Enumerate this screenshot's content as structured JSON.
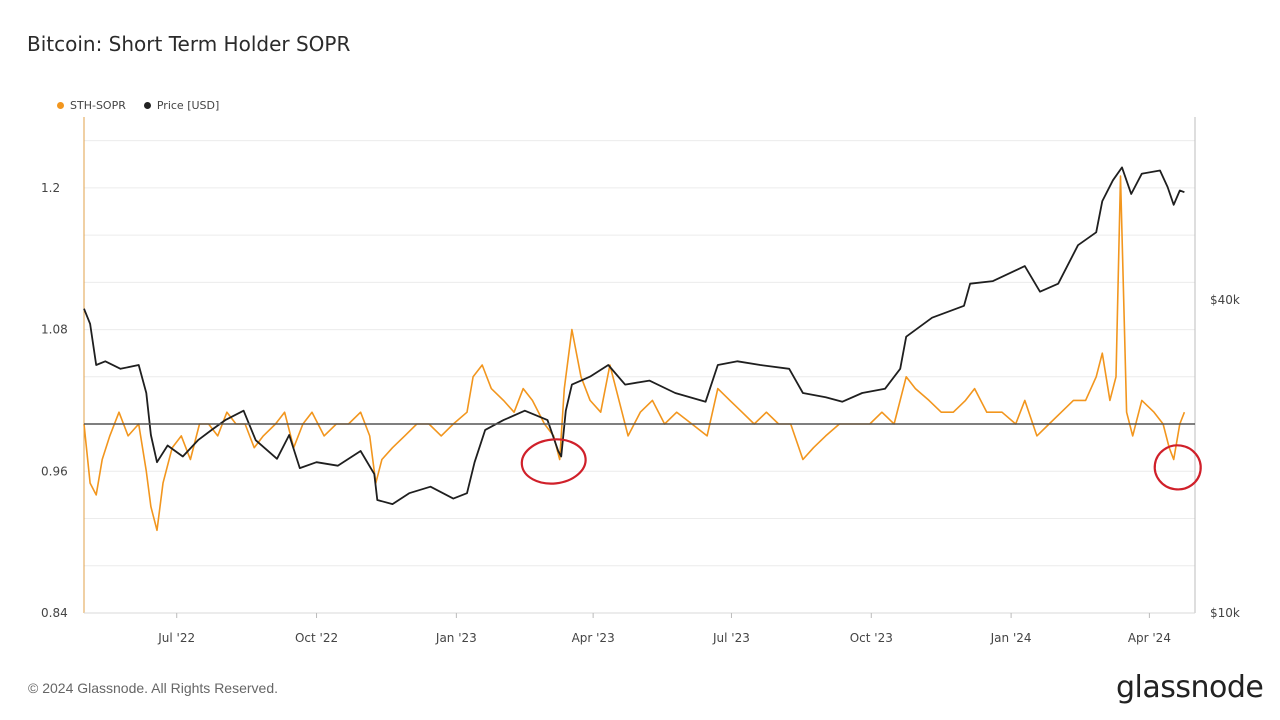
{
  "page": {
    "title": "Bitcoin: Short Term Holder SOPR",
    "footer": "© 2024 Glassnode. All Rights Reserved.",
    "logo": "glassnode"
  },
  "legend": [
    {
      "label": "STH-SOPR",
      "color": "#f2961e"
    },
    {
      "label": "Price [USD]",
      "color": "#222222"
    }
  ],
  "colors": {
    "sopr": "#f2961e",
    "price": "#1f1f1f",
    "baseline": "#555555",
    "annotation": "#d0202a",
    "grid": "#ececec"
  },
  "chart_data": {
    "type": "line",
    "title": "Bitcoin: Short Term Holder SOPR",
    "x_range": [
      "2022-05-01",
      "2024-05-01"
    ],
    "x_ticks": [
      {
        "date": "2022-07-01",
        "label": "Jul '22"
      },
      {
        "date": "2022-10-01",
        "label": "Oct '22"
      },
      {
        "date": "2023-01-01",
        "label": "Jan '23"
      },
      {
        "date": "2023-04-01",
        "label": "Apr '23"
      },
      {
        "date": "2023-07-01",
        "label": "Jul '23"
      },
      {
        "date": "2023-10-01",
        "label": "Oct '23"
      },
      {
        "date": "2024-01-01",
        "label": "Jan '24"
      },
      {
        "date": "2024-04-01",
        "label": "Apr '24"
      }
    ],
    "y_left": {
      "range": [
        0.84,
        1.26
      ],
      "ticks": [
        0.84,
        0.96,
        1.08,
        1.2
      ],
      "tick_labels": [
        "0.84",
        "0.96",
        "1.08",
        "1.2"
      ]
    },
    "y_right": {
      "scale": "log",
      "range": [
        10000,
        90000
      ],
      "ticks": [
        10000,
        40000
      ],
      "tick_labels": [
        "$10k",
        "$40k"
      ]
    },
    "baseline": 1.0,
    "grid": true,
    "legend_position": "top-left",
    "series": [
      {
        "name": "STH-SOPR",
        "axis": "left",
        "points": [
          [
            "2022-05-01",
            1.0
          ],
          [
            "2022-05-05",
            0.95
          ],
          [
            "2022-05-09",
            0.94
          ],
          [
            "2022-05-13",
            0.97
          ],
          [
            "2022-05-18",
            0.99
          ],
          [
            "2022-05-24",
            1.01
          ],
          [
            "2022-05-30",
            0.99
          ],
          [
            "2022-06-06",
            1.0
          ],
          [
            "2022-06-11",
            0.96
          ],
          [
            "2022-06-14",
            0.93
          ],
          [
            "2022-06-18",
            0.91
          ],
          [
            "2022-06-22",
            0.95
          ],
          [
            "2022-06-28",
            0.98
          ],
          [
            "2022-07-04",
            0.99
          ],
          [
            "2022-07-10",
            0.97
          ],
          [
            "2022-07-16",
            1.0
          ],
          [
            "2022-07-22",
            1.0
          ],
          [
            "2022-07-28",
            0.99
          ],
          [
            "2022-08-03",
            1.01
          ],
          [
            "2022-08-09",
            1.0
          ],
          [
            "2022-08-15",
            1.0
          ],
          [
            "2022-08-21",
            0.98
          ],
          [
            "2022-08-27",
            0.99
          ],
          [
            "2022-09-04",
            1.0
          ],
          [
            "2022-09-10",
            1.01
          ],
          [
            "2022-09-16",
            0.98
          ],
          [
            "2022-09-22",
            1.0
          ],
          [
            "2022-09-28",
            1.01
          ],
          [
            "2022-10-06",
            0.99
          ],
          [
            "2022-10-14",
            1.0
          ],
          [
            "2022-10-22",
            1.0
          ],
          [
            "2022-10-30",
            1.01
          ],
          [
            "2022-11-05",
            0.99
          ],
          [
            "2022-11-09",
            0.95
          ],
          [
            "2022-11-13",
            0.97
          ],
          [
            "2022-11-20",
            0.98
          ],
          [
            "2022-11-28",
            0.99
          ],
          [
            "2022-12-06",
            1.0
          ],
          [
            "2022-12-14",
            1.0
          ],
          [
            "2022-12-22",
            0.99
          ],
          [
            "2022-12-30",
            1.0
          ],
          [
            "2023-01-08",
            1.01
          ],
          [
            "2023-01-12",
            1.04
          ],
          [
            "2023-01-18",
            1.05
          ],
          [
            "2023-01-24",
            1.03
          ],
          [
            "2023-02-01",
            1.02
          ],
          [
            "2023-02-08",
            1.01
          ],
          [
            "2023-02-14",
            1.03
          ],
          [
            "2023-02-20",
            1.02
          ],
          [
            "2023-02-28",
            1.0
          ],
          [
            "2023-03-06",
            0.99
          ],
          [
            "2023-03-10",
            0.97
          ],
          [
            "2023-03-13",
            1.03
          ],
          [
            "2023-03-18",
            1.08
          ],
          [
            "2023-03-24",
            1.04
          ],
          [
            "2023-03-30",
            1.02
          ],
          [
            "2023-04-06",
            1.01
          ],
          [
            "2023-04-12",
            1.05
          ],
          [
            "2023-04-18",
            1.02
          ],
          [
            "2023-04-24",
            0.99
          ],
          [
            "2023-05-02",
            1.01
          ],
          [
            "2023-05-10",
            1.02
          ],
          [
            "2023-05-18",
            1.0
          ],
          [
            "2023-05-26",
            1.01
          ],
          [
            "2023-06-05",
            1.0
          ],
          [
            "2023-06-15",
            0.99
          ],
          [
            "2023-06-22",
            1.03
          ],
          [
            "2023-06-30",
            1.02
          ],
          [
            "2023-07-08",
            1.01
          ],
          [
            "2023-07-16",
            1.0
          ],
          [
            "2023-07-24",
            1.01
          ],
          [
            "2023-08-01",
            1.0
          ],
          [
            "2023-08-09",
            1.0
          ],
          [
            "2023-08-17",
            0.97
          ],
          [
            "2023-08-24",
            0.98
          ],
          [
            "2023-09-01",
            0.99
          ],
          [
            "2023-09-10",
            1.0
          ],
          [
            "2023-09-20",
            1.0
          ],
          [
            "2023-09-30",
            1.0
          ],
          [
            "2023-10-08",
            1.01
          ],
          [
            "2023-10-16",
            1.0
          ],
          [
            "2023-10-24",
            1.04
          ],
          [
            "2023-10-30",
            1.03
          ],
          [
            "2023-11-08",
            1.02
          ],
          [
            "2023-11-16",
            1.01
          ],
          [
            "2023-11-24",
            1.01
          ],
          [
            "2023-12-02",
            1.02
          ],
          [
            "2023-12-08",
            1.03
          ],
          [
            "2023-12-16",
            1.01
          ],
          [
            "2023-12-26",
            1.01
          ],
          [
            "2024-01-04",
            1.0
          ],
          [
            "2024-01-10",
            1.02
          ],
          [
            "2024-01-18",
            0.99
          ],
          [
            "2024-01-26",
            1.0
          ],
          [
            "2024-02-03",
            1.01
          ],
          [
            "2024-02-11",
            1.02
          ],
          [
            "2024-02-19",
            1.02
          ],
          [
            "2024-02-26",
            1.04
          ],
          [
            "2024-03-01",
            1.06
          ],
          [
            "2024-03-06",
            1.02
          ],
          [
            "2024-03-10",
            1.04
          ],
          [
            "2024-03-13",
            1.21
          ],
          [
            "2024-03-17",
            1.01
          ],
          [
            "2024-03-21",
            0.99
          ],
          [
            "2024-03-27",
            1.02
          ],
          [
            "2024-04-04",
            1.01
          ],
          [
            "2024-04-10",
            1.0
          ],
          [
            "2024-04-14",
            0.98
          ],
          [
            "2024-04-17",
            0.97
          ],
          [
            "2024-04-21",
            1.0
          ],
          [
            "2024-04-24",
            1.01
          ]
        ]
      },
      {
        "name": "Price [USD]",
        "axis": "right",
        "points": [
          [
            "2022-05-01",
            38500
          ],
          [
            "2022-05-05",
            36000
          ],
          [
            "2022-05-09",
            30000
          ],
          [
            "2022-05-15",
            30500
          ],
          [
            "2022-05-25",
            29500
          ],
          [
            "2022-06-06",
            30000
          ],
          [
            "2022-06-11",
            26500
          ],
          [
            "2022-06-14",
            22000
          ],
          [
            "2022-06-18",
            19500
          ],
          [
            "2022-06-25",
            21000
          ],
          [
            "2022-07-05",
            20000
          ],
          [
            "2022-07-15",
            21500
          ],
          [
            "2022-07-24",
            22500
          ],
          [
            "2022-08-02",
            23500
          ],
          [
            "2022-08-14",
            24500
          ],
          [
            "2022-08-22",
            21500
          ],
          [
            "2022-09-05",
            19800
          ],
          [
            "2022-09-13",
            22000
          ],
          [
            "2022-09-20",
            19000
          ],
          [
            "2022-10-01",
            19500
          ],
          [
            "2022-10-15",
            19200
          ],
          [
            "2022-10-30",
            20500
          ],
          [
            "2022-11-08",
            18500
          ],
          [
            "2022-11-10",
            16500
          ],
          [
            "2022-11-20",
            16200
          ],
          [
            "2022-12-01",
            17000
          ],
          [
            "2022-12-15",
            17500
          ],
          [
            "2022-12-30",
            16600
          ],
          [
            "2023-01-08",
            17000
          ],
          [
            "2023-01-13",
            19500
          ],
          [
            "2023-01-20",
            22500
          ],
          [
            "2023-02-01",
            23500
          ],
          [
            "2023-02-15",
            24500
          ],
          [
            "2023-03-02",
            23500
          ],
          [
            "2023-03-09",
            20500
          ],
          [
            "2023-03-11",
            20000
          ],
          [
            "2023-03-14",
            24500
          ],
          [
            "2023-03-18",
            27500
          ],
          [
            "2023-03-30",
            28500
          ],
          [
            "2023-04-11",
            30000
          ],
          [
            "2023-04-22",
            27500
          ],
          [
            "2023-05-08",
            28000
          ],
          [
            "2023-05-25",
            26500
          ],
          [
            "2023-06-14",
            25500
          ],
          [
            "2023-06-22",
            30000
          ],
          [
            "2023-07-05",
            30500
          ],
          [
            "2023-07-20",
            30000
          ],
          [
            "2023-08-08",
            29500
          ],
          [
            "2023-08-17",
            26500
          ],
          [
            "2023-09-01",
            26000
          ],
          [
            "2023-09-12",
            25500
          ],
          [
            "2023-09-25",
            26500
          ],
          [
            "2023-10-10",
            27000
          ],
          [
            "2023-10-20",
            29500
          ],
          [
            "2023-10-24",
            34000
          ],
          [
            "2023-11-10",
            37000
          ],
          [
            "2023-12-01",
            39000
          ],
          [
            "2023-12-05",
            43000
          ],
          [
            "2023-12-20",
            43500
          ],
          [
            "2024-01-10",
            46500
          ],
          [
            "2024-01-20",
            41500
          ],
          [
            "2024-02-01",
            43000
          ],
          [
            "2024-02-14",
            51000
          ],
          [
            "2024-02-26",
            54000
          ],
          [
            "2024-03-01",
            62000
          ],
          [
            "2024-03-08",
            68000
          ],
          [
            "2024-03-14",
            72000
          ],
          [
            "2024-03-20",
            64000
          ],
          [
            "2024-03-27",
            70000
          ],
          [
            "2024-04-08",
            71000
          ],
          [
            "2024-04-13",
            66000
          ],
          [
            "2024-04-17",
            61000
          ],
          [
            "2024-04-21",
            65000
          ],
          [
            "2024-04-24",
            64500
          ]
        ]
      }
    ],
    "annotations": [
      {
        "type": "hand-drawn-circle",
        "date": "2023-03-10",
        "value": 0.97
      },
      {
        "type": "hand-drawn-circle",
        "date": "2024-04-17",
        "value": 0.965
      }
    ]
  }
}
